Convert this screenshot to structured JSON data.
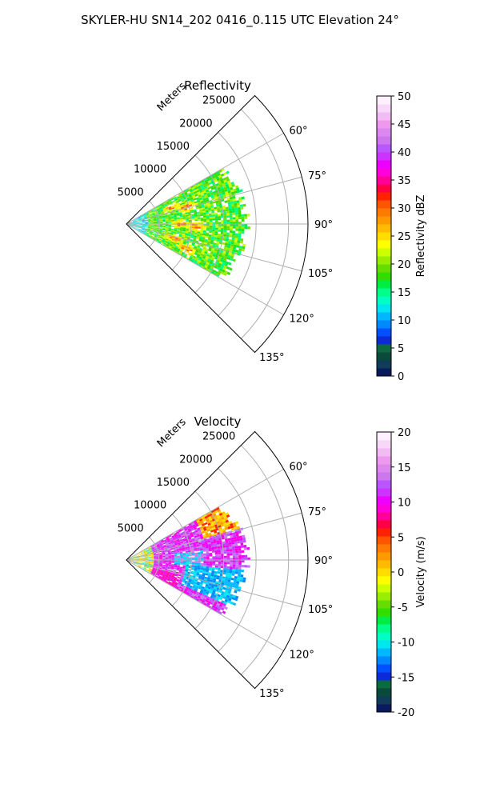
{
  "figure_title": "SKYLER-HU  SN14_202  0416_0.115 UTC Elevation 24°",
  "chart_data": [
    {
      "type": "heatmap",
      "projection": "polar-sector",
      "title": "Reflectivity",
      "radial_axis_label": "Meters",
      "radial_ticks": [
        "5000",
        "10000",
        "15000",
        "20000",
        "25000"
      ],
      "radial_range": [
        0,
        28000
      ],
      "angular_ticks": [
        "60°",
        "75°",
        "90°",
        "105°",
        "120°",
        "135°"
      ],
      "angular_range_deg": [
        45,
        135
      ],
      "grid": true,
      "colorbar": {
        "label": "Reflectivity dBZ",
        "ticks": [
          "0",
          "5",
          "10",
          "15",
          "20",
          "25",
          "30",
          "35",
          "40",
          "45",
          "50"
        ],
        "range": [
          0,
          50
        ],
        "colors": [
          "#0a1a5c",
          "#103c5a",
          "#0a4a3a",
          "#0c6a40",
          "#0b2bd6",
          "#0050ff",
          "#0088ff",
          "#00b8ff",
          "#00e6f0",
          "#00ffc0",
          "#00ff88",
          "#00ee44",
          "#33dd00",
          "#66dd00",
          "#99ee00",
          "#ccff00",
          "#ffff00",
          "#ffdd00",
          "#ffbb00",
          "#ff9900",
          "#ff7a00",
          "#ff5500",
          "#ff2200",
          "#ff0044",
          "#ff0099",
          "#ff00dd",
          "#ee00ff",
          "#cc33ff",
          "#bb55ff",
          "#cc77ee",
          "#dd88ee",
          "#ee99ee",
          "#f3bbf3",
          "#f8d8f8",
          "#fff0ff"
        ]
      },
      "echo_region": {
        "range_m": [
          0,
          19000
        ],
        "azimuth_deg": [
          60,
          120
        ]
      }
    },
    {
      "type": "heatmap",
      "projection": "polar-sector",
      "title": "Velocity",
      "radial_axis_label": "Meters",
      "radial_ticks": [
        "5000",
        "10000",
        "15000",
        "20000",
        "25000"
      ],
      "radial_range": [
        0,
        28000
      ],
      "angular_ticks": [
        "60°",
        "75°",
        "90°",
        "105°",
        "120°",
        "135°"
      ],
      "angular_range_deg": [
        45,
        135
      ],
      "grid": true,
      "colorbar": {
        "label": "Velocity (m/s)",
        "ticks": [
          "-20",
          "-15",
          "-10",
          "-5",
          "0",
          "5",
          "10",
          "15",
          "20"
        ],
        "range": [
          -20,
          20
        ],
        "colors": [
          "#0a1a5c",
          "#103c5a",
          "#0a4a3a",
          "#0c6a40",
          "#0b2bd6",
          "#0050ff",
          "#0088ff",
          "#00b8ff",
          "#00e6f0",
          "#00ffc0",
          "#00ff88",
          "#00ee44",
          "#33dd00",
          "#66dd00",
          "#99ee00",
          "#ccff00",
          "#ffff00",
          "#ffdd00",
          "#ffbb00",
          "#ff9900",
          "#ff7a00",
          "#ff5500",
          "#ff2200",
          "#ff0044",
          "#ff0099",
          "#ff00dd",
          "#ee00ff",
          "#cc33ff",
          "#bb55ff",
          "#cc77ee",
          "#dd88ee",
          "#ee99ee",
          "#f3bbf3",
          "#f8d8f8",
          "#fff0ff"
        ]
      },
      "echo_region": {
        "range_m": [
          0,
          19000
        ],
        "azimuth_deg": [
          60,
          120
        ]
      }
    }
  ]
}
